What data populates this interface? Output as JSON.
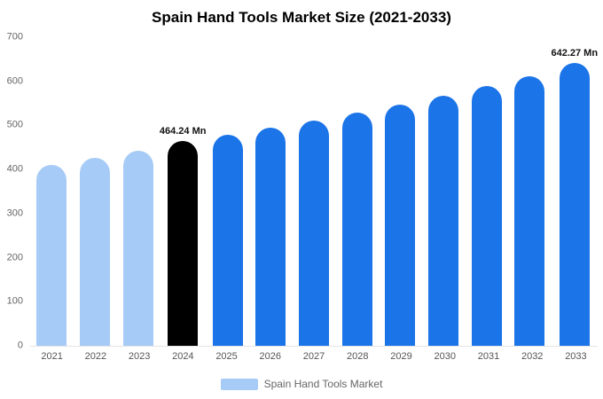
{
  "chart_data": {
    "type": "bar",
    "title": "Spain Hand Tools Market Size (2021-2033)",
    "categories": [
      "2021",
      "2022",
      "2023",
      "2024",
      "2025",
      "2026",
      "2027",
      "2028",
      "2029",
      "2030",
      "2031",
      "2032",
      "2033"
    ],
    "values": [
      410,
      426,
      442,
      464.24,
      478,
      494,
      511,
      529,
      548,
      568,
      589,
      612,
      642.27
    ],
    "bar_colors": [
      "#a7cbf7",
      "#a7cbf7",
      "#a7cbf7",
      "#000000",
      "#1b74e8",
      "#1b74e8",
      "#1b74e8",
      "#1b74e8",
      "#1b74e8",
      "#1b74e8",
      "#1b74e8",
      "#1b74e8",
      "#1b74e8"
    ],
    "ylim": [
      0,
      700
    ],
    "yticks": [
      0,
      100,
      200,
      300,
      400,
      500,
      600,
      700
    ],
    "grid": false,
    "annotations": [
      {
        "category": "2024",
        "text": "464.24 Mn"
      },
      {
        "category": "2033",
        "text": "642.27 Mn"
      }
    ],
    "legend": [
      {
        "label": "Spain Hand Tools Market",
        "color": "#a7cbf7"
      }
    ],
    "legend_position": "bottom"
  }
}
